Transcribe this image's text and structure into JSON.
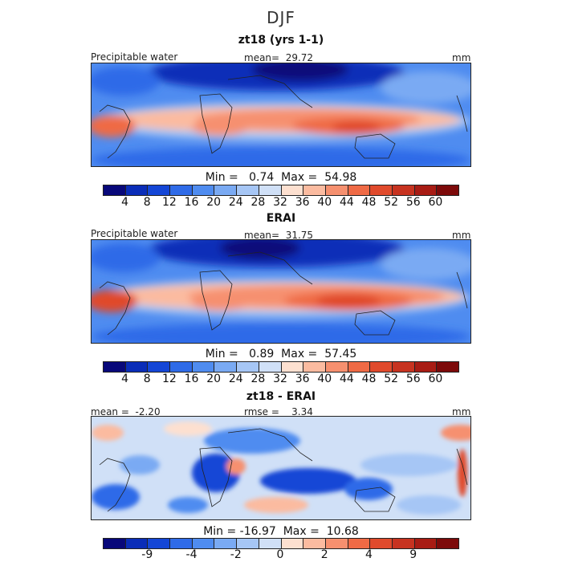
{
  "chart_data": {
    "type": "heatmap",
    "title": "DJF",
    "panels": [
      {
        "subtitle": "zt18 (yrs 1-1)",
        "left_label": "Precipitable water",
        "center_label": "mean=  29.72",
        "right_label": "mm",
        "minmax": "Min =   0.74  Max =  54.98",
        "colorbar_colors": [
          "#08087a",
          "#0a2db8",
          "#1446d6",
          "#2f6be8",
          "#4f8cf0",
          "#7aaaf3",
          "#a6c6f5",
          "#d0e0f7",
          "#fde0d0",
          "#fbbba0",
          "#f6906f",
          "#ef6a45",
          "#e04a2c",
          "#c73320",
          "#a81c14",
          "#7d0a0a"
        ],
        "colorbar_ticks": [
          "4",
          "8",
          "12",
          "16",
          "20",
          "24",
          "28",
          "32",
          "36",
          "40",
          "44",
          "48",
          "52",
          "56",
          "60"
        ],
        "value_range": [
          0,
          64
        ]
      },
      {
        "subtitle": "ERAI",
        "left_label": "Precipitable water",
        "center_label": "mean=  31.75",
        "right_label": "mm",
        "minmax": "Min =   0.89  Max =  57.45",
        "colorbar_colors": [
          "#08087a",
          "#0a2db8",
          "#1446d6",
          "#2f6be8",
          "#4f8cf0",
          "#7aaaf3",
          "#a6c6f5",
          "#d0e0f7",
          "#fde0d0",
          "#fbbba0",
          "#f6906f",
          "#ef6a45",
          "#e04a2c",
          "#c73320",
          "#a81c14",
          "#7d0a0a"
        ],
        "colorbar_ticks": [
          "4",
          "8",
          "12",
          "16",
          "20",
          "24",
          "28",
          "32",
          "36",
          "40",
          "44",
          "48",
          "52",
          "56",
          "60"
        ],
        "value_range": [
          0,
          64
        ]
      },
      {
        "subtitle": "zt18 - ERAI",
        "left_label": "mean =  -2.20",
        "center_label": "rmse =    3.34",
        "right_label": "mm",
        "minmax": "Min = -16.97  Max =  10.68",
        "colorbar_colors": [
          "#08087a",
          "#0a2db8",
          "#1446d6",
          "#2f6be8",
          "#4f8cf0",
          "#7aaaf3",
          "#a6c6f5",
          "#d0e0f7",
          "#fde0d0",
          "#fbbba0",
          "#f6906f",
          "#ef6a45",
          "#e04a2c",
          "#c73320",
          "#a81c14",
          "#7d0a0a"
        ],
        "colorbar_ticks": [
          "-9",
          "-4",
          "-2",
          "0",
          "2",
          "4",
          "9"
        ],
        "value_range": [
          -16.97,
          10.68
        ]
      }
    ]
  }
}
